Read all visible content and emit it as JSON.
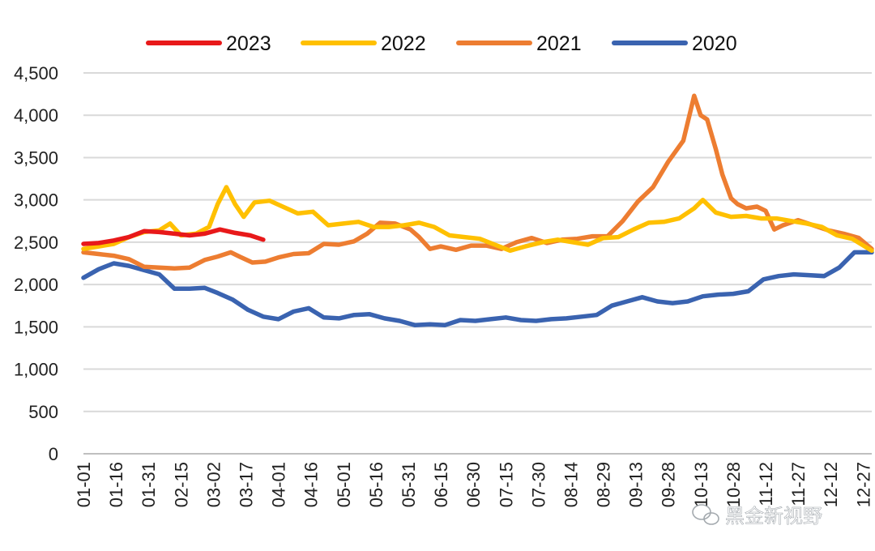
{
  "chart_data": {
    "type": "line",
    "title": "",
    "xlabel": "",
    "ylabel": "",
    "ylim": [
      0,
      4500
    ],
    "yticks": [
      0,
      500,
      1000,
      1500,
      2000,
      2500,
      3000,
      3500,
      4000,
      4500
    ],
    "ytick_labels": [
      "0",
      "500",
      "1,000",
      "1,500",
      "2,000",
      "2,500",
      "3,000",
      "3,500",
      "4,000",
      "4,500"
    ],
    "xlim": [
      "01-01",
      "12-31"
    ],
    "xtick_labels": [
      "01-01",
      "01-16",
      "01-31",
      "02-15",
      "03-02",
      "03-17",
      "04-01",
      "04-16",
      "05-01",
      "05-16",
      "05-31",
      "06-15",
      "06-30",
      "07-15",
      "07-30",
      "08-14",
      "08-29",
      "09-13",
      "09-28",
      "10-13",
      "10-28",
      "11-12",
      "11-27",
      "12-12",
      "12-27"
    ],
    "grid": true,
    "legend": "top",
    "series": [
      {
        "name": "2023",
        "color": "#e8191a",
        "x": [
          "01-01",
          "01-08",
          "01-15",
          "01-22",
          "01-29",
          "02-05",
          "02-12",
          "02-19",
          "02-26",
          "03-05",
          "03-12",
          "03-19",
          "03-25"
        ],
        "values": [
          2480,
          2490,
          2520,
          2560,
          2630,
          2620,
          2600,
          2580,
          2600,
          2650,
          2610,
          2580,
          2530
        ]
      },
      {
        "name": "2022",
        "color": "#ffc000",
        "x": [
          "01-01",
          "01-08",
          "01-15",
          "01-22",
          "01-29",
          "02-05",
          "02-10",
          "02-15",
          "02-22",
          "02-28",
          "03-04",
          "03-08",
          "03-12",
          "03-16",
          "03-21",
          "03-28",
          "04-03",
          "04-10",
          "04-17",
          "04-24",
          "05-01",
          "05-08",
          "05-15",
          "05-22",
          "05-29",
          "06-05",
          "06-12",
          "06-19",
          "06-26",
          "07-03",
          "07-10",
          "07-17",
          "07-24",
          "08-01",
          "08-08",
          "08-15",
          "08-22",
          "08-29",
          "09-05",
          "09-12",
          "09-19",
          "09-26",
          "10-03",
          "10-10",
          "10-14",
          "10-20",
          "10-27",
          "11-03",
          "11-10",
          "11-17",
          "11-24",
          "12-01",
          "12-08",
          "12-15",
          "12-22",
          "12-31"
        ],
        "values": [
          2420,
          2450,
          2480,
          2560,
          2620,
          2640,
          2720,
          2580,
          2600,
          2680,
          2950,
          3150,
          2950,
          2800,
          2970,
          2990,
          2920,
          2840,
          2860,
          2700,
          2720,
          2740,
          2680,
          2680,
          2700,
          2730,
          2680,
          2580,
          2560,
          2540,
          2470,
          2400,
          2450,
          2500,
          2530,
          2500,
          2470,
          2550,
          2560,
          2650,
          2730,
          2740,
          2780,
          2900,
          3000,
          2850,
          2800,
          2810,
          2780,
          2780,
          2750,
          2720,
          2680,
          2580,
          2540,
          2400
        ]
      },
      {
        "name": "2021",
        "color": "#ed7d31",
        "x": [
          "01-01",
          "01-08",
          "01-15",
          "01-22",
          "01-29",
          "02-05",
          "02-12",
          "02-19",
          "02-26",
          "03-04",
          "03-10",
          "03-14",
          "03-20",
          "03-26",
          "04-01",
          "04-08",
          "04-15",
          "04-22",
          "04-29",
          "05-06",
          "05-12",
          "05-18",
          "05-25",
          "06-01",
          "06-05",
          "06-10",
          "06-15",
          "06-22",
          "06-29",
          "07-06",
          "07-13",
          "07-20",
          "07-27",
          "08-03",
          "08-10",
          "08-17",
          "08-24",
          "08-31",
          "09-07",
          "09-14",
          "09-21",
          "09-28",
          "10-05",
          "10-10",
          "10-13",
          "10-16",
          "10-20",
          "10-23",
          "10-27",
          "10-30",
          "11-03",
          "11-08",
          "11-12",
          "11-16",
          "11-20",
          "11-27",
          "12-04",
          "12-11",
          "12-18",
          "12-25",
          "12-31"
        ],
        "values": [
          2380,
          2360,
          2340,
          2300,
          2210,
          2200,
          2190,
          2200,
          2290,
          2330,
          2380,
          2330,
          2260,
          2270,
          2320,
          2360,
          2370,
          2480,
          2470,
          2510,
          2600,
          2730,
          2720,
          2650,
          2560,
          2420,
          2450,
          2410,
          2460,
          2460,
          2420,
          2500,
          2550,
          2490,
          2530,
          2540,
          2570,
          2570,
          2750,
          2980,
          3150,
          3450,
          3700,
          4230,
          4000,
          3950,
          3600,
          3300,
          3020,
          2950,
          2900,
          2920,
          2870,
          2650,
          2700,
          2760,
          2700,
          2640,
          2600,
          2550,
          2420
        ]
      },
      {
        "name": "2020",
        "color": "#3a63b0",
        "x": [
          "01-01",
          "01-08",
          "01-15",
          "01-22",
          "01-29",
          "02-05",
          "02-12",
          "02-19",
          "02-26",
          "03-04",
          "03-11",
          "03-18",
          "03-25",
          "04-01",
          "04-08",
          "04-15",
          "04-22",
          "04-29",
          "05-06",
          "05-13",
          "05-20",
          "05-27",
          "06-03",
          "06-10",
          "06-17",
          "06-24",
          "07-01",
          "07-08",
          "07-15",
          "07-22",
          "07-29",
          "08-05",
          "08-12",
          "08-19",
          "08-26",
          "09-02",
          "09-09",
          "09-16",
          "09-23",
          "09-30",
          "10-07",
          "10-14",
          "10-21",
          "10-28",
          "11-04",
          "11-11",
          "11-18",
          "11-25",
          "12-02",
          "12-09",
          "12-16",
          "12-23",
          "12-31"
        ],
        "values": [
          2080,
          2180,
          2250,
          2220,
          2170,
          2120,
          1950,
          1950,
          1960,
          1900,
          1820,
          1700,
          1620,
          1590,
          1680,
          1720,
          1610,
          1600,
          1640,
          1650,
          1600,
          1570,
          1520,
          1530,
          1520,
          1580,
          1570,
          1590,
          1610,
          1580,
          1570,
          1590,
          1600,
          1620,
          1640,
          1750,
          1800,
          1850,
          1800,
          1780,
          1800,
          1860,
          1880,
          1890,
          1920,
          2060,
          2100,
          2120,
          2110,
          2100,
          2200,
          2380,
          2380
        ]
      }
    ]
  },
  "watermark": "黑金新视野"
}
